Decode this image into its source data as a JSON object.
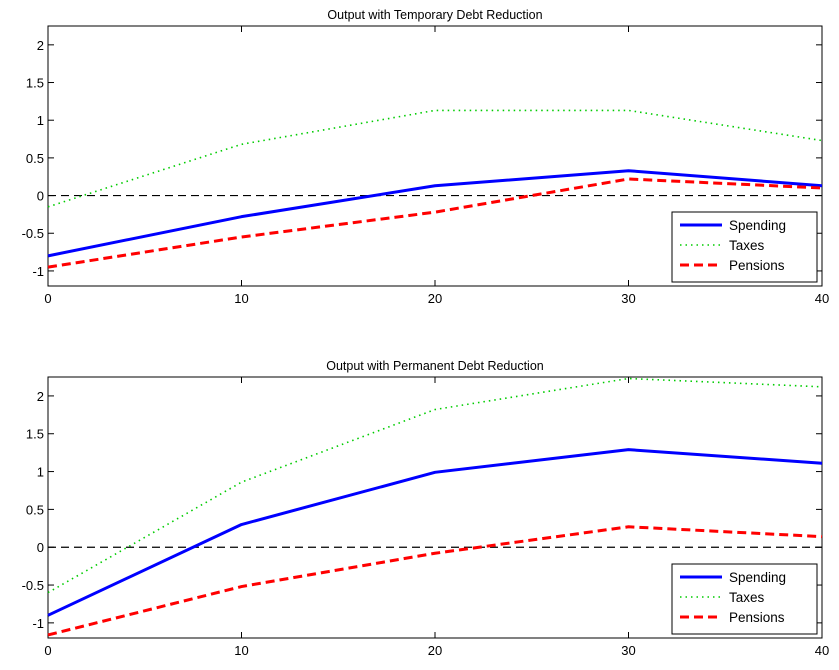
{
  "chart_data": [
    {
      "type": "line",
      "title": "Output with Temporary Debt Reduction",
      "xlabel": "",
      "ylabel": "",
      "xlim": [
        0,
        40
      ],
      "ylim": [
        -1.2,
        2.25
      ],
      "xticks": [
        0,
        10,
        20,
        30,
        40
      ],
      "yticks": [
        -1,
        -0.5,
        0,
        0.5,
        1,
        1.5,
        2
      ],
      "reference_line": {
        "y": 0,
        "style": "dashed",
        "color": "#000000"
      },
      "legend": {
        "position": "bottom-right",
        "entries": [
          "Spending",
          "Taxes",
          "Pensions"
        ]
      },
      "x": [
        0,
        10,
        20,
        30,
        40
      ],
      "series": [
        {
          "name": "Spending",
          "values": [
            -0.8,
            -0.28,
            0.13,
            0.33,
            0.13
          ],
          "color": "#0000ff",
          "style": "solid"
        },
        {
          "name": "Taxes",
          "values": [
            -0.15,
            0.68,
            1.13,
            1.13,
            0.73
          ],
          "color": "#00cc00",
          "style": "dotted"
        },
        {
          "name": "Pensions",
          "values": [
            -0.95,
            -0.55,
            -0.22,
            0.22,
            0.1
          ],
          "color": "#ff0000",
          "style": "dashed"
        }
      ]
    },
    {
      "type": "line",
      "title": "Output with Permanent Debt Reduction",
      "xlabel": "",
      "ylabel": "",
      "xlim": [
        0,
        40
      ],
      "ylim": [
        -1.2,
        2.25
      ],
      "xticks": [
        0,
        10,
        20,
        30,
        40
      ],
      "yticks": [
        -1,
        -0.5,
        0,
        0.5,
        1,
        1.5,
        2
      ],
      "reference_line": {
        "y": 0,
        "style": "dashed",
        "color": "#000000"
      },
      "legend": {
        "position": "bottom-right",
        "entries": [
          "Spending",
          "Taxes",
          "Pensions"
        ]
      },
      "x": [
        0,
        10,
        20,
        30,
        40
      ],
      "series": [
        {
          "name": "Spending",
          "values": [
            -0.9,
            0.3,
            0.99,
            1.29,
            1.11
          ],
          "color": "#0000ff",
          "style": "solid"
        },
        {
          "name": "Taxes",
          "values": [
            -0.6,
            0.86,
            1.82,
            2.23,
            2.12
          ],
          "color": "#00cc00",
          "style": "dotted"
        },
        {
          "name": "Pensions",
          "values": [
            -1.16,
            -0.52,
            -0.08,
            0.27,
            0.14
          ],
          "color": "#ff0000",
          "style": "dashed"
        }
      ]
    }
  ]
}
